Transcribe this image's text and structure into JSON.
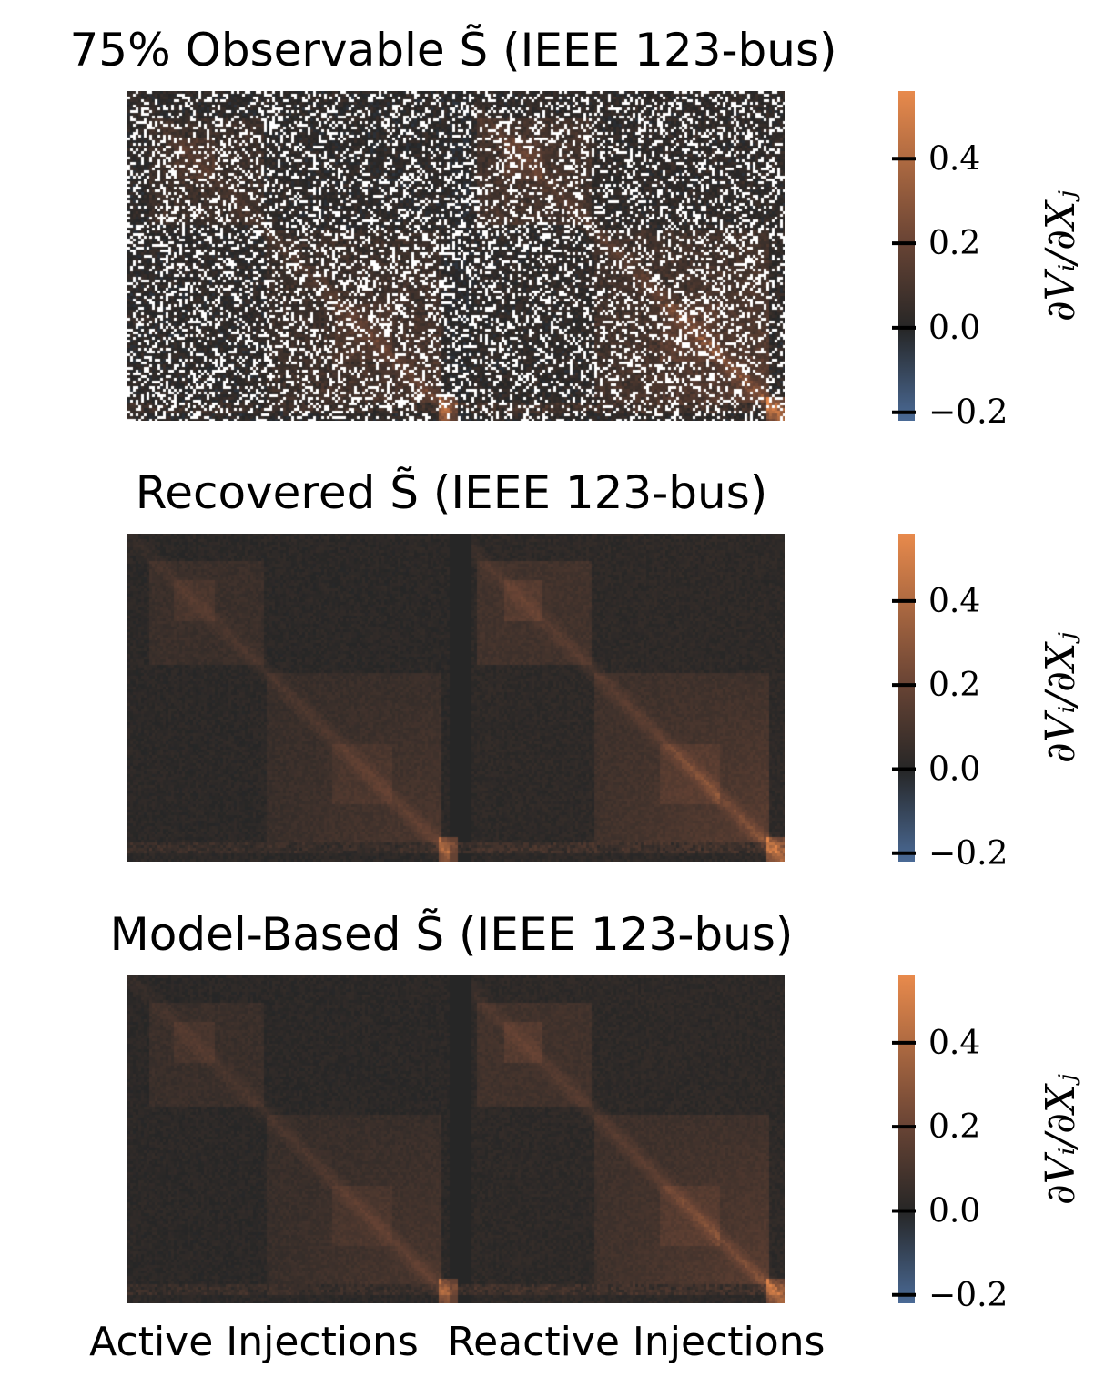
{
  "chart_data": [
    {
      "type": "heatmap",
      "title": "75% Observable S̃ (IEEE 123-bus)",
      "variant": "observable",
      "observed_fraction": 0.75,
      "colorbar": {
        "label": "∂Vᵢ/∂Xⱼ",
        "ticks": [
          "0.4",
          "0.2",
          "0.0",
          "−0.2"
        ],
        "tick_values": [
          0.4,
          0.2,
          0.0,
          -0.2
        ],
        "range": [
          -0.22,
          0.56
        ]
      }
    },
    {
      "type": "heatmap",
      "title": "Recovered S̃ (IEEE 123-bus)",
      "variant": "recovered",
      "colorbar": {
        "label": "∂Vᵢ/∂Xⱼ",
        "ticks": [
          "0.4",
          "0.2",
          "0.0",
          "−0.2"
        ],
        "tick_values": [
          0.4,
          0.2,
          0.0,
          -0.2
        ],
        "range": [
          -0.22,
          0.56
        ]
      }
    },
    {
      "type": "heatmap",
      "title": "Model-Based S̃ (IEEE 123-bus)",
      "variant": "model",
      "colorbar": {
        "label": "∂Vᵢ/∂Xⱼ",
        "ticks": [
          "0.4",
          "0.2",
          "0.0",
          "−0.2"
        ],
        "tick_values": [
          0.4,
          0.2,
          0.0,
          -0.2
        ],
        "range": [
          -0.22,
          0.56
        ]
      },
      "xlabels": [
        "Active Injections",
        "Reactive Injections"
      ]
    }
  ],
  "colors": {
    "low": "#4a6a96",
    "zero": "#262626",
    "high": "#e88a4c",
    "missing": "#ffffff"
  }
}
